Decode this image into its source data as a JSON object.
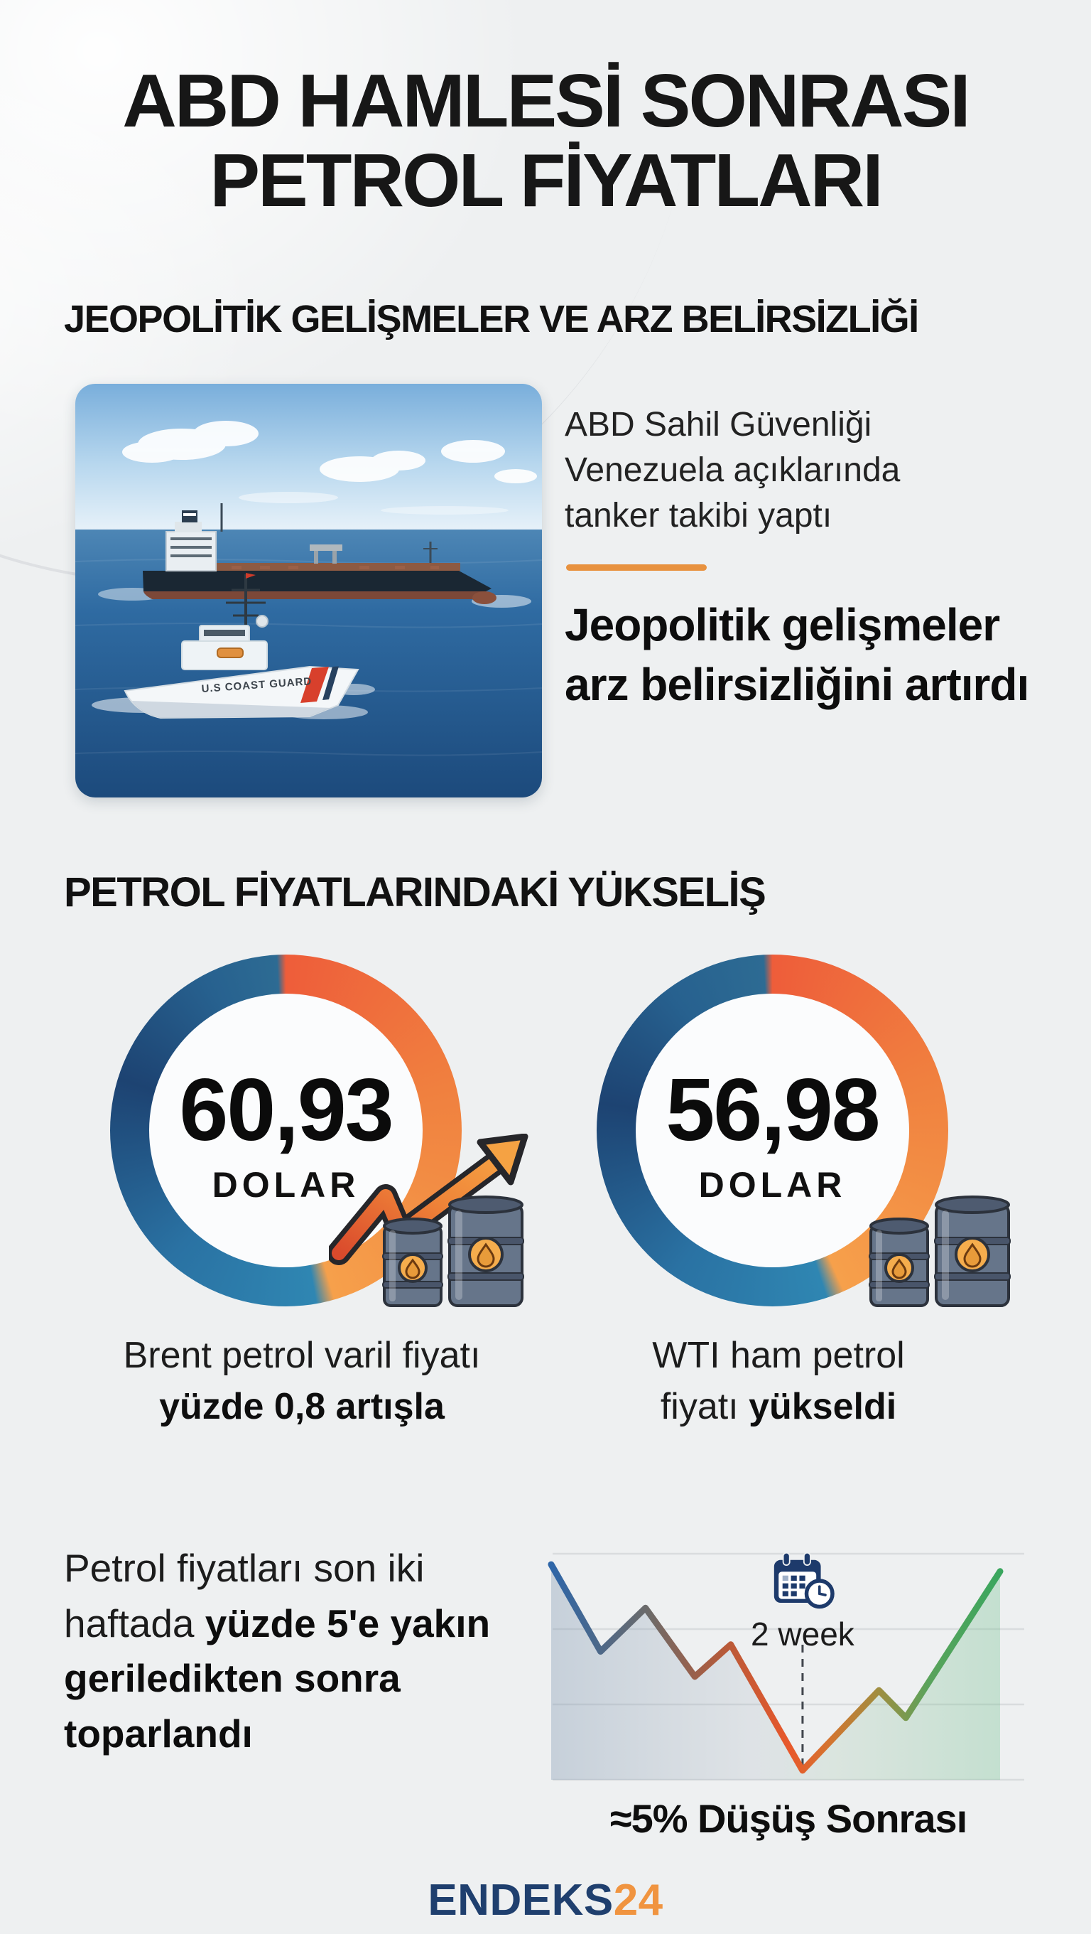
{
  "title": {
    "line1": "ABD HAMLESİ SONRASI",
    "line2": "PETROL FİYATLARI"
  },
  "section1": {
    "heading": "JEOPOLİTİK GELİŞMELER VE ARZ BELİRSİZLİĞİ",
    "lead": "ABD Sahil Güvenliği Venezuela açıklarında tanker takibi yaptı",
    "emphasis": "Jeopolitik gelişmeler arz belirsizliğini artırdı",
    "photo_ship_label": "U.S COAST GUARD",
    "accent_color": "#e8923f"
  },
  "section2": {
    "heading": "PETROL FİYATLARINDAKİ YÜKSELİŞ",
    "cards": [
      {
        "value": "60,93",
        "unit": "DOLAR",
        "label_lines": [
          {
            "regular": "Brent petrol varil fiyatı",
            "bold": ""
          },
          {
            "regular": "",
            "bold": "yüzde 0,8 artışla"
          }
        ]
      },
      {
        "value": "56,98",
        "unit": "DOLAR",
        "label_lines": [
          {
            "regular": "WTI ham petrol",
            "bold": ""
          },
          {
            "regular": "fiyatı ",
            "bold": "yükseldi"
          }
        ]
      }
    ]
  },
  "section3": {
    "text_lines": [
      {
        "regular": "Petrol fiyatları son iki",
        "bold": ""
      },
      {
        "regular": "haftada ",
        "bold": "yüzde 5'e yakın"
      },
      {
        "regular": "",
        "bold": "geriledikten sonra"
      },
      {
        "regular": "",
        "bold": "toparlandı"
      }
    ],
    "chart_badge": "2 week",
    "chart_caption": "≈5% Düşüş Sonrası"
  },
  "footer": {
    "brand_primary": "ENDEKS",
    "brand_secondary": "24",
    "primary_color": "#1f3f6e",
    "secondary_color": "#f09440"
  },
  "colors": {
    "background": "#eef0f1",
    "accent_orange": "#e8923f",
    "donut_orange": "#f28a42",
    "donut_blue": "#265f92",
    "chart_blue": "#2e66a8",
    "chart_red": "#e8582b",
    "chart_green": "#3aa65e",
    "text": "#1a1a1a"
  },
  "chart_data": [
    {
      "type": "pie",
      "subtype": "decorative-donut",
      "label": "Brent petrol varil fiyatı",
      "value_text": "60,93",
      "unit": "DOLAR",
      "note": "yüzde 0,8 artışla (+0,8%)",
      "segments": [
        {
          "name": "orange",
          "sweep_deg": 167,
          "color": "#f28a42"
        },
        {
          "name": "blue",
          "sweep_deg": 193,
          "color": "#265f92"
        }
      ]
    },
    {
      "type": "pie",
      "subtype": "decorative-donut",
      "label": "WTI ham petrol",
      "value_text": "56,98",
      "unit": "DOLAR",
      "note": "fiyatı yükseldi",
      "segments": [
        {
          "name": "orange",
          "sweep_deg": 159,
          "color": "#f28a42"
        },
        {
          "name": "blue",
          "sweep_deg": 201,
          "color": "#265f92"
        }
      ]
    },
    {
      "type": "line",
      "title": "≈5% Düşüş Sonrası",
      "annotation": "2 week",
      "description": "Petrol fiyatları son iki haftada yüzde 5'e yakın geriledikten sonra toparlandı",
      "x": [
        0,
        0.11,
        0.21,
        0.32,
        0.4,
        0.56,
        0.73,
        0.79,
        1.0
      ],
      "values": [
        0.95,
        0.57,
        0.76,
        0.46,
        0.6,
        0.05,
        0.4,
        0.28,
        0.92
      ],
      "ylim": [
        0,
        1
      ],
      "grid": true,
      "gradient_colors": [
        "#2e66a8",
        "#b55a3a",
        "#e8582b",
        "#a58c3e",
        "#3aa65e"
      ]
    }
  ]
}
